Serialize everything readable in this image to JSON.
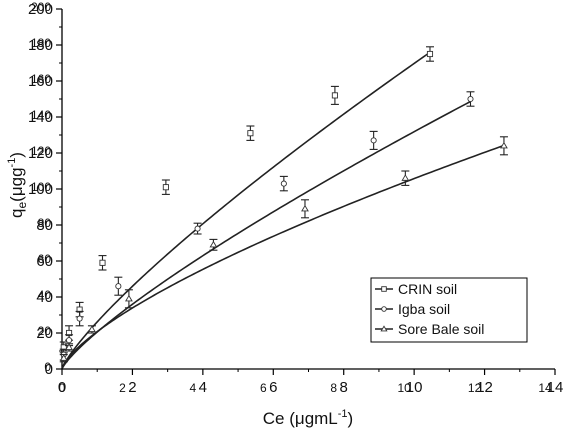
{
  "chart_data": {
    "type": "scatter",
    "title": "",
    "xlabel": "Ce (μgmL",
    "xlabel_sup": "-1",
    "xlabel_close": ")",
    "ylabel_main": "q",
    "ylabel_sub": "e",
    "ylabel_rest": "(μgg",
    "ylabel_sup": "-1",
    "ylabel_close": ")",
    "xlim": [
      0,
      14
    ],
    "ylim": [
      0,
      200
    ],
    "x_ticks": [
      "0",
      "2",
      "4",
      "6",
      "8",
      "10",
      "12",
      "14"
    ],
    "y_ticks": [
      "0",
      "20",
      "40",
      "60",
      "80",
      "100",
      "120",
      "140",
      "160",
      "180",
      "200"
    ],
    "stray_x_labels": [
      "0",
      "2",
      "4",
      "6",
      "8",
      "10",
      "12",
      "14"
    ],
    "stray_y_labels": [
      "0",
      "20",
      "40",
      "60",
      "80",
      "100",
      "120",
      "140",
      "160",
      "180",
      "200"
    ],
    "grid": false,
    "legend_position": "bottom-right",
    "series": [
      {
        "name": "CRIN soil",
        "marker": "square",
        "x": [
          0.05,
          0.2,
          0.5,
          1.15,
          2.95,
          5.35,
          7.75,
          10.45
        ],
        "y": [
          12,
          20,
          33,
          59,
          101,
          131,
          152,
          175
        ],
        "err": [
          3,
          4,
          4,
          4,
          4,
          4,
          5,
          4
        ],
        "fit": {
          "k": 26.17,
          "n": 0.812
        }
      },
      {
        "name": "Igba soil",
        "marker": "circle",
        "x": [
          0.05,
          0.2,
          0.5,
          1.6,
          3.85,
          6.3,
          8.85,
          11.6
        ],
        "y": [
          8,
          16,
          28,
          46,
          78,
          103,
          127,
          150
        ],
        "err": [
          3,
          3,
          4,
          5,
          3,
          4,
          5,
          4
        ],
        "fit": {
          "k": 20.56,
          "n": 0.807
        }
      },
      {
        "name": "Sore Bale soil",
        "marker": "triangle",
        "x": [
          0.05,
          0.2,
          0.85,
          1.9,
          4.3,
          6.9,
          9.75,
          12.55
        ],
        "y": [
          6,
          12,
          22,
          39,
          69,
          89,
          106,
          124
        ],
        "err": [
          2,
          2,
          2,
          5,
          3,
          5,
          4,
          5
        ],
        "fit": {
          "k": 20.77,
          "n": 0.707
        }
      }
    ]
  }
}
